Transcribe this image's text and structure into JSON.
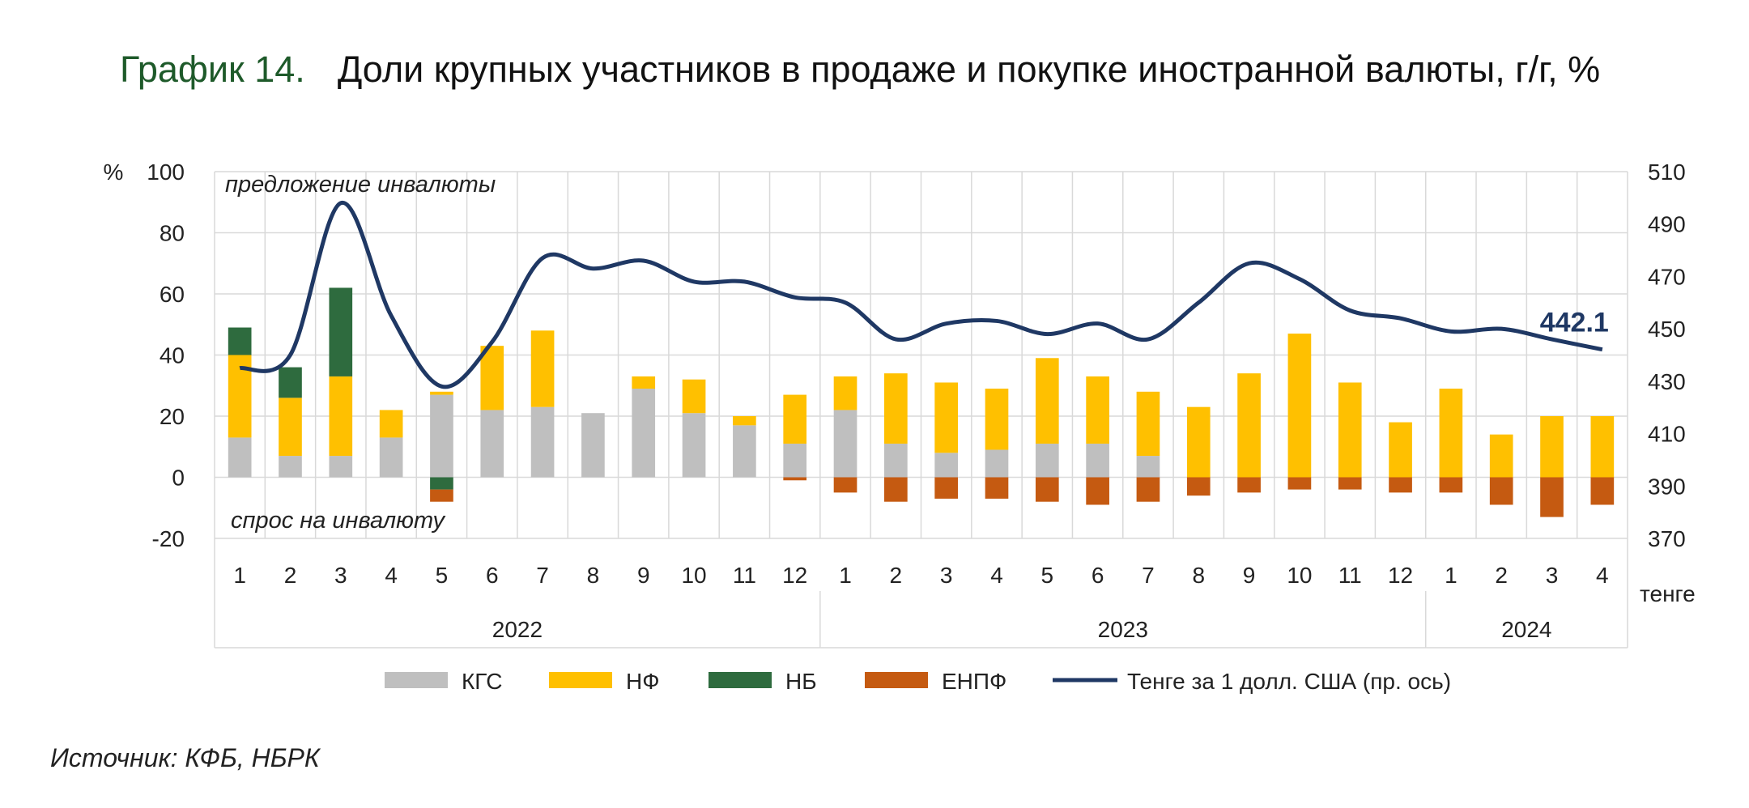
{
  "title": {
    "number": "График 14.",
    "text": "Доли крупных участников в продаже и покупке иностранной валюты, г/г, %"
  },
  "source": "Источник: КФБ, НБРК",
  "colors": {
    "kgs": "#bfbfbf",
    "nf": "#ffc000",
    "nb": "#2e6b3e",
    "enpf": "#c55a11",
    "line": "#1f3864",
    "grid": "#d9d9d9"
  },
  "chart_data": {
    "type": "bar",
    "left_axis": {
      "unit": "%",
      "ylim": [
        -20,
        100
      ],
      "ticks": [
        "100",
        "80",
        "60",
        "40",
        "20",
        "0",
        "-20"
      ]
    },
    "right_axis": {
      "unit": "тенге",
      "ylim": [
        370,
        510
      ],
      "ticks": [
        "510",
        "490",
        "470",
        "450",
        "430",
        "410",
        "390",
        "370"
      ]
    },
    "annotations": {
      "top": "предложение инвалюты",
      "bottom": "спрос на инвалюту",
      "last_value": "442.1"
    },
    "categories": [
      "1",
      "2",
      "3",
      "4",
      "5",
      "6",
      "7",
      "8",
      "9",
      "10",
      "11",
      "12",
      "1",
      "2",
      "3",
      "4",
      "5",
      "6",
      "7",
      "8",
      "9",
      "10",
      "11",
      "12",
      "1",
      "2",
      "3",
      "4"
    ],
    "years": [
      {
        "label": "2022",
        "start": 0,
        "end": 12
      },
      {
        "label": "2023",
        "start": 12,
        "end": 24
      },
      {
        "label": "2024",
        "start": 24,
        "end": 28
      }
    ],
    "series": [
      {
        "name": "КГС",
        "color": "#bfbfbf",
        "values": [
          13,
          7,
          7,
          13,
          27,
          22,
          23,
          21,
          29,
          21,
          17,
          11,
          22,
          11,
          8,
          9,
          11,
          11,
          7,
          0,
          0,
          0,
          0,
          0,
          0,
          0,
          0,
          0
        ]
      },
      {
        "name": "НФ",
        "color": "#ffc000",
        "values": [
          27,
          19,
          26,
          9,
          1,
          21,
          25,
          0,
          4,
          11,
          3,
          16,
          11,
          23,
          23,
          20,
          28,
          22,
          21,
          23,
          34,
          47,
          31,
          18,
          29,
          14,
          20,
          20
        ]
      },
      {
        "name": "НБ",
        "color": "#2e6b3e",
        "values": [
          9,
          10,
          29,
          0,
          -4,
          0,
          0,
          0,
          0,
          0,
          0,
          0,
          0,
          0,
          0,
          0,
          0,
          0,
          0,
          0,
          0,
          0,
          0,
          0,
          0,
          0,
          0,
          0
        ]
      },
      {
        "name": "ЕНПФ",
        "color": "#c55a11",
        "values": [
          0,
          0,
          0,
          0,
          -4,
          0,
          0,
          0,
          0,
          0,
          0,
          -1,
          -5,
          -8,
          -7,
          -7,
          -8,
          -9,
          -8,
          -6,
          -5,
          -4,
          -4,
          -5,
          -5,
          -9,
          -13,
          -9
        ]
      }
    ],
    "line": {
      "name": "Тенге за 1 долл. США (пр. ось)",
      "color": "#1f3864",
      "values": [
        435,
        440,
        498,
        455,
        428,
        445,
        477,
        473,
        476,
        468,
        468,
        462,
        460,
        446,
        452,
        453,
        448,
        452,
        446,
        460,
        475,
        469,
        457,
        454,
        449,
        450,
        446,
        442.1
      ]
    }
  }
}
